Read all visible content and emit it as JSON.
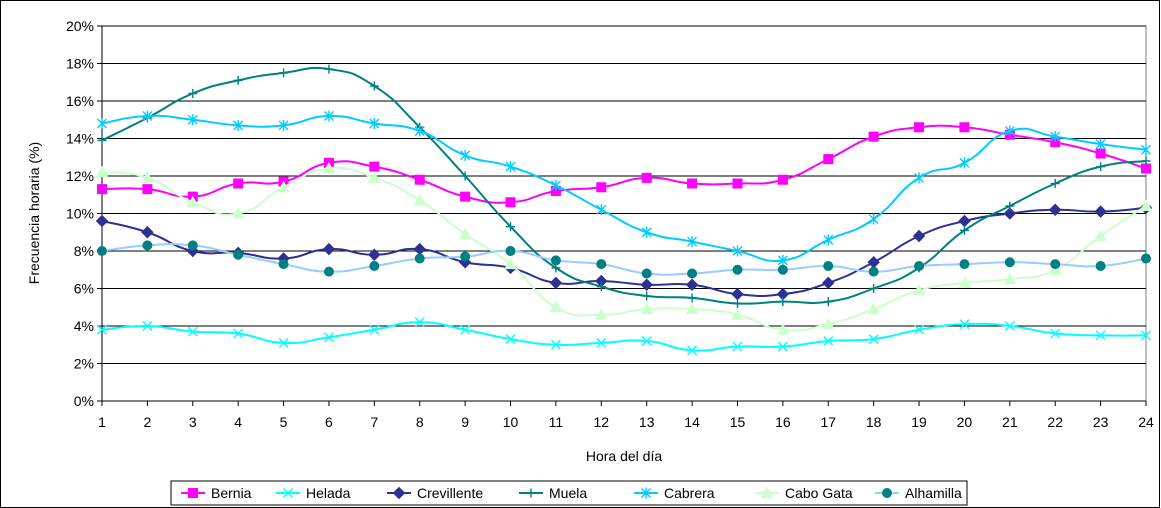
{
  "chart_data": {
    "type": "line",
    "title": "",
    "xlabel": "Hora del día",
    "ylabel": "Frecuencia horaria (%)",
    "ylim": [
      0,
      20
    ],
    "ytick_step": 2,
    "ytick_suffix": "%",
    "grid": "horizontal",
    "legend_position": "bottom",
    "x": [
      1,
      2,
      3,
      4,
      5,
      6,
      7,
      8,
      9,
      10,
      11,
      12,
      13,
      14,
      15,
      16,
      17,
      18,
      19,
      20,
      21,
      22,
      23,
      24
    ],
    "series": [
      {
        "name": "Bernia",
        "color": "#FF00FF",
        "marker": "square",
        "values": [
          11.3,
          11.3,
          10.9,
          11.6,
          11.7,
          12.7,
          12.5,
          11.8,
          10.9,
          10.6,
          11.2,
          11.4,
          11.9,
          11.6,
          11.6,
          11.8,
          12.9,
          14.1,
          14.6,
          14.6,
          14.2,
          13.8,
          13.2,
          12.4
        ]
      },
      {
        "name": "Helada",
        "color": "#00FFFF",
        "marker": "x",
        "values": [
          3.8,
          4.0,
          3.7,
          3.6,
          3.1,
          3.4,
          3.8,
          4.2,
          3.8,
          3.3,
          3.0,
          3.1,
          3.2,
          2.7,
          2.9,
          2.9,
          3.2,
          3.3,
          3.8,
          4.1,
          4.0,
          3.6,
          3.5,
          3.5
        ]
      },
      {
        "name": "Crevillente",
        "color": "#2E3192",
        "marker": "diamond",
        "values": [
          9.6,
          9.0,
          8.0,
          7.9,
          7.6,
          8.1,
          7.8,
          8.1,
          7.4,
          7.1,
          6.3,
          6.4,
          6.2,
          6.2,
          5.7,
          5.7,
          6.3,
          7.4,
          8.8,
          9.6,
          10.0,
          10.2,
          10.1,
          10.3
        ]
      },
      {
        "name": "Muela",
        "color": "#008080",
        "marker": "plus",
        "values": [
          13.9,
          15.1,
          16.4,
          17.1,
          17.5,
          17.7,
          16.8,
          14.6,
          12.0,
          9.3,
          7.1,
          6.1,
          5.6,
          5.5,
          5.2,
          5.3,
          5.3,
          6.0,
          7.1,
          9.1,
          10.4,
          11.6,
          12.5,
          12.8
        ]
      },
      {
        "name": "Cabrera",
        "color": "#00CCFF",
        "marker": "asterisk",
        "values": [
          14.8,
          15.2,
          15.0,
          14.7,
          14.7,
          15.2,
          14.8,
          14.4,
          13.1,
          12.5,
          11.5,
          10.2,
          9.0,
          8.5,
          8.0,
          7.5,
          8.6,
          9.7,
          11.9,
          12.7,
          14.4,
          14.1,
          13.7,
          13.4
        ]
      },
      {
        "name": "Cabo Gata",
        "color": "#CCFFCC",
        "marker": "triangle",
        "values": [
          12.2,
          11.9,
          10.6,
          10.0,
          11.4,
          12.4,
          11.9,
          10.7,
          8.9,
          7.3,
          5.0,
          4.6,
          4.9,
          4.9,
          4.6,
          3.8,
          4.1,
          4.9,
          5.9,
          6.3,
          6.5,
          7.0,
          8.8,
          10.4
        ]
      },
      {
        "name": "Alhamilla",
        "color": "#008080",
        "marker": "circle",
        "line_color": "#99CCFF",
        "values": [
          8.0,
          8.3,
          8.3,
          7.8,
          7.3,
          6.9,
          7.2,
          7.6,
          7.7,
          8.0,
          7.5,
          7.3,
          6.8,
          6.8,
          7.0,
          7.0,
          7.2,
          6.9,
          7.2,
          7.3,
          7.4,
          7.3,
          7.2,
          7.6
        ]
      }
    ]
  }
}
